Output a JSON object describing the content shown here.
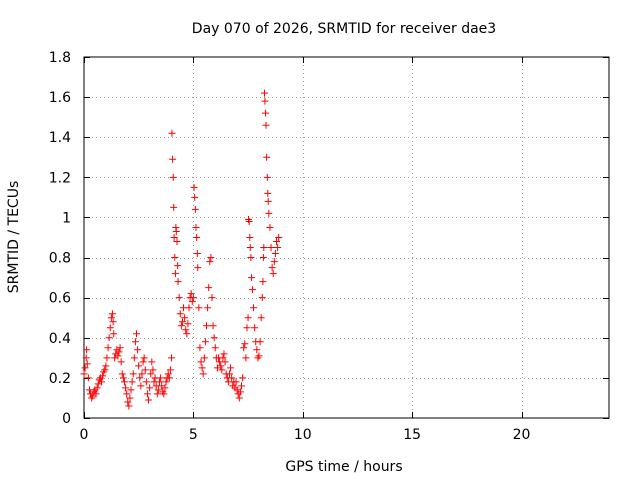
{
  "chart_data": {
    "type": "scatter",
    "title": "Day 070 of 2026, SRMTID for receiver dae3",
    "xlabel": "GPS time / hours",
    "ylabel": "SRMTID / TECUs",
    "xlim": [
      0,
      24
    ],
    "ylim": [
      0,
      1.8
    ],
    "x_ticks": [
      0,
      5,
      10,
      15,
      20
    ],
    "x_tick_labels": [
      "0",
      "5",
      "10",
      "15",
      "20"
    ],
    "y_ticks": [
      0,
      0.2,
      0.4,
      0.6,
      0.8,
      1.0,
      1.2,
      1.4,
      1.6,
      1.8
    ],
    "y_tick_labels": [
      "0",
      "0.2",
      "0.4",
      "0.6",
      "0.8",
      "1",
      "1.2",
      "1.4",
      "1.6",
      "1.8"
    ],
    "grid": true,
    "marker": "+",
    "colors": {
      "series": "#ff0000",
      "grid": "#a0a0a0",
      "axes": "#000000"
    },
    "series": [
      {
        "name": "SRMTID",
        "points": [
          [
            0.0,
            0.22
          ],
          [
            0.05,
            0.25
          ],
          [
            0.1,
            0.3
          ],
          [
            0.12,
            0.34
          ],
          [
            0.15,
            0.27
          ],
          [
            0.2,
            0.2
          ],
          [
            0.25,
            0.14
          ],
          [
            0.3,
            0.12
          ],
          [
            0.35,
            0.1
          ],
          [
            0.4,
            0.11
          ],
          [
            0.45,
            0.13
          ],
          [
            0.5,
            0.14
          ],
          [
            0.55,
            0.12
          ],
          [
            0.6,
            0.15
          ],
          [
            0.65,
            0.17
          ],
          [
            0.7,
            0.19
          ],
          [
            0.75,
            0.2
          ],
          [
            0.8,
            0.18
          ],
          [
            0.85,
            0.21
          ],
          [
            0.9,
            0.23
          ],
          [
            0.95,
            0.24
          ],
          [
            1.0,
            0.26
          ],
          [
            1.05,
            0.3
          ],
          [
            1.1,
            0.35
          ],
          [
            1.15,
            0.4
          ],
          [
            1.2,
            0.45
          ],
          [
            1.25,
            0.5
          ],
          [
            1.3,
            0.52
          ],
          [
            1.33,
            0.48
          ],
          [
            1.36,
            0.42
          ],
          [
            1.4,
            0.3
          ],
          [
            1.45,
            0.32
          ],
          [
            1.5,
            0.34
          ],
          [
            1.55,
            0.31
          ],
          [
            1.6,
            0.33
          ],
          [
            1.65,
            0.35
          ],
          [
            1.7,
            0.28
          ],
          [
            1.75,
            0.22
          ],
          [
            1.8,
            0.2
          ],
          [
            1.85,
            0.18
          ],
          [
            1.9,
            0.15
          ],
          [
            1.95,
            0.12
          ],
          [
            2.0,
            0.08
          ],
          [
            2.05,
            0.06
          ],
          [
            2.1,
            0.1
          ],
          [
            2.15,
            0.14
          ],
          [
            2.2,
            0.18
          ],
          [
            2.25,
            0.22
          ],
          [
            2.3,
            0.3
          ],
          [
            2.35,
            0.38
          ],
          [
            2.4,
            0.42
          ],
          [
            2.45,
            0.34
          ],
          [
            2.5,
            0.26
          ],
          [
            2.55,
            0.2
          ],
          [
            2.6,
            0.16
          ],
          [
            2.65,
            0.22
          ],
          [
            2.7,
            0.28
          ],
          [
            2.75,
            0.3
          ],
          [
            2.8,
            0.24
          ],
          [
            2.85,
            0.18
          ],
          [
            2.9,
            0.12
          ],
          [
            2.95,
            0.09
          ],
          [
            3.0,
            0.15
          ],
          [
            3.05,
            0.22
          ],
          [
            3.1,
            0.28
          ],
          [
            3.15,
            0.24
          ],
          [
            3.2,
            0.18
          ],
          [
            3.25,
            0.2
          ],
          [
            3.3,
            0.16
          ],
          [
            3.35,
            0.12
          ],
          [
            3.4,
            0.14
          ],
          [
            3.45,
            0.18
          ],
          [
            3.5,
            0.2
          ],
          [
            3.55,
            0.16
          ],
          [
            3.6,
            0.13
          ],
          [
            3.65,
            0.12
          ],
          [
            3.7,
            0.15
          ],
          [
            3.75,
            0.18
          ],
          [
            3.8,
            0.2
          ],
          [
            3.85,
            0.22
          ],
          [
            3.9,
            0.2
          ],
          [
            3.95,
            0.24
          ],
          [
            4.0,
            0.3
          ],
          [
            4.02,
            1.42
          ],
          [
            4.05,
            1.29
          ],
          [
            4.08,
            1.2
          ],
          [
            4.1,
            1.05
          ],
          [
            4.12,
            0.9
          ],
          [
            4.15,
            0.8
          ],
          [
            4.18,
            0.72
          ],
          [
            4.2,
            0.95
          ],
          [
            4.22,
            0.93
          ],
          [
            4.25,
            0.88
          ],
          [
            4.28,
            0.76
          ],
          [
            4.3,
            0.68
          ],
          [
            4.35,
            0.6
          ],
          [
            4.4,
            0.52
          ],
          [
            4.45,
            0.46
          ],
          [
            4.5,
            0.48
          ],
          [
            4.55,
            0.55
          ],
          [
            4.6,
            0.5
          ],
          [
            4.65,
            0.44
          ],
          [
            4.7,
            0.42
          ],
          [
            4.75,
            0.47
          ],
          [
            4.8,
            0.55
          ],
          [
            4.85,
            0.6
          ],
          [
            4.9,
            0.62
          ],
          [
            4.95,
            0.58
          ],
          [
            5.0,
            0.6
          ],
          [
            5.03,
            1.15
          ],
          [
            5.06,
            1.1
          ],
          [
            5.09,
            1.04
          ],
          [
            5.12,
            0.95
          ],
          [
            5.15,
            0.9
          ],
          [
            5.18,
            0.82
          ],
          [
            5.2,
            0.75
          ],
          [
            5.25,
            0.55
          ],
          [
            5.3,
            0.35
          ],
          [
            5.35,
            0.28
          ],
          [
            5.4,
            0.25
          ],
          [
            5.45,
            0.22
          ],
          [
            5.5,
            0.3
          ],
          [
            5.55,
            0.38
          ],
          [
            5.6,
            0.46
          ],
          [
            5.65,
            0.55
          ],
          [
            5.7,
            0.65
          ],
          [
            5.75,
            0.78
          ],
          [
            5.8,
            0.8
          ],
          [
            5.85,
            0.6
          ],
          [
            5.9,
            0.46
          ],
          [
            5.95,
            0.4
          ],
          [
            6.0,
            0.35
          ],
          [
            6.05,
            0.3
          ],
          [
            6.1,
            0.25
          ],
          [
            6.15,
            0.3
          ],
          [
            6.2,
            0.28
          ],
          [
            6.25,
            0.26
          ],
          [
            6.3,
            0.24
          ],
          [
            6.35,
            0.3
          ],
          [
            6.4,
            0.32
          ],
          [
            6.45,
            0.28
          ],
          [
            6.5,
            0.22
          ],
          [
            6.55,
            0.2
          ],
          [
            6.6,
            0.18
          ],
          [
            6.65,
            0.22
          ],
          [
            6.7,
            0.25
          ],
          [
            6.75,
            0.2
          ],
          [
            6.8,
            0.16
          ],
          [
            6.85,
            0.18
          ],
          [
            6.9,
            0.15
          ],
          [
            6.95,
            0.18
          ],
          [
            7.0,
            0.14
          ],
          [
            7.05,
            0.12
          ],
          [
            7.1,
            0.1
          ],
          [
            7.15,
            0.13
          ],
          [
            7.2,
            0.16
          ],
          [
            7.25,
            0.2
          ],
          [
            7.3,
            0.35
          ],
          [
            7.35,
            0.37
          ],
          [
            7.4,
            0.3
          ],
          [
            7.45,
            0.45
          ],
          [
            7.5,
            0.5
          ],
          [
            7.52,
            0.99
          ],
          [
            7.55,
            0.98
          ],
          [
            7.58,
            0.9
          ],
          [
            7.6,
            0.85
          ],
          [
            7.63,
            0.8
          ],
          [
            7.66,
            0.7
          ],
          [
            7.7,
            0.64
          ],
          [
            7.75,
            0.55
          ],
          [
            7.8,
            0.45
          ],
          [
            7.85,
            0.38
          ],
          [
            7.9,
            0.34
          ],
          [
            7.95,
            0.3
          ],
          [
            8.0,
            0.31
          ],
          [
            8.05,
            0.38
          ],
          [
            8.1,
            0.5
          ],
          [
            8.15,
            0.6
          ],
          [
            8.18,
            0.68
          ],
          [
            8.2,
            0.8
          ],
          [
            8.22,
            0.85
          ],
          [
            8.25,
            1.62
          ],
          [
            8.27,
            1.58
          ],
          [
            8.3,
            1.52
          ],
          [
            8.32,
            1.46
          ],
          [
            8.35,
            1.3
          ],
          [
            8.38,
            1.2
          ],
          [
            8.4,
            1.12
          ],
          [
            8.42,
            1.08
          ],
          [
            8.45,
            1.02
          ],
          [
            8.5,
            0.95
          ],
          [
            8.55,
            0.85
          ],
          [
            8.6,
            0.75
          ],
          [
            8.65,
            0.72
          ],
          [
            8.7,
            0.78
          ],
          [
            8.75,
            0.82
          ],
          [
            8.8,
            0.88
          ],
          [
            8.85,
            0.85
          ],
          [
            8.9,
            0.9
          ]
        ]
      }
    ]
  }
}
